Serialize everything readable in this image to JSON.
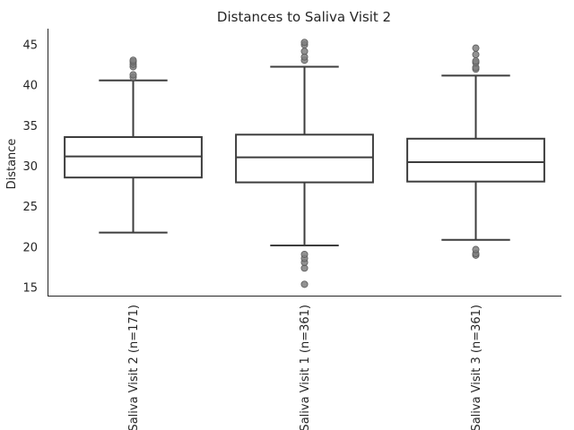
{
  "chart_data": {
    "type": "box",
    "title": "Distances to Saliva Visit 2",
    "xlabel": "",
    "ylabel": "Distance",
    "ylim": [
      14,
      47
    ],
    "yticks": [
      15,
      20,
      25,
      30,
      35,
      40,
      45
    ],
    "grid": false,
    "categories": [
      "Saliva Visit 2 (n=171)",
      "Saliva Visit 1 (n=361)",
      "Saliva Visit 3 (n=361)"
    ],
    "boxes": [
      {
        "whisker_low": 21.8,
        "q1": 28.6,
        "median": 31.2,
        "q3": 33.6,
        "whisker_high": 40.6,
        "outliers": [
          41.0,
          41.3,
          42.3,
          42.6,
          42.9,
          43.1
        ]
      },
      {
        "whisker_low": 20.2,
        "q1": 28.0,
        "median": 31.1,
        "q3": 33.9,
        "whisker_high": 42.3,
        "outliers": [
          15.4,
          17.4,
          18.1,
          18.6,
          19.1,
          43.1,
          43.5,
          44.2,
          45.0,
          45.3
        ]
      },
      {
        "whisker_low": 20.9,
        "q1": 28.1,
        "median": 30.5,
        "q3": 33.4,
        "whisker_high": 41.2,
        "outliers": [
          19.0,
          19.2,
          19.7,
          42.0,
          42.2,
          42.8,
          43.0,
          43.8,
          44.6
        ]
      }
    ]
  }
}
